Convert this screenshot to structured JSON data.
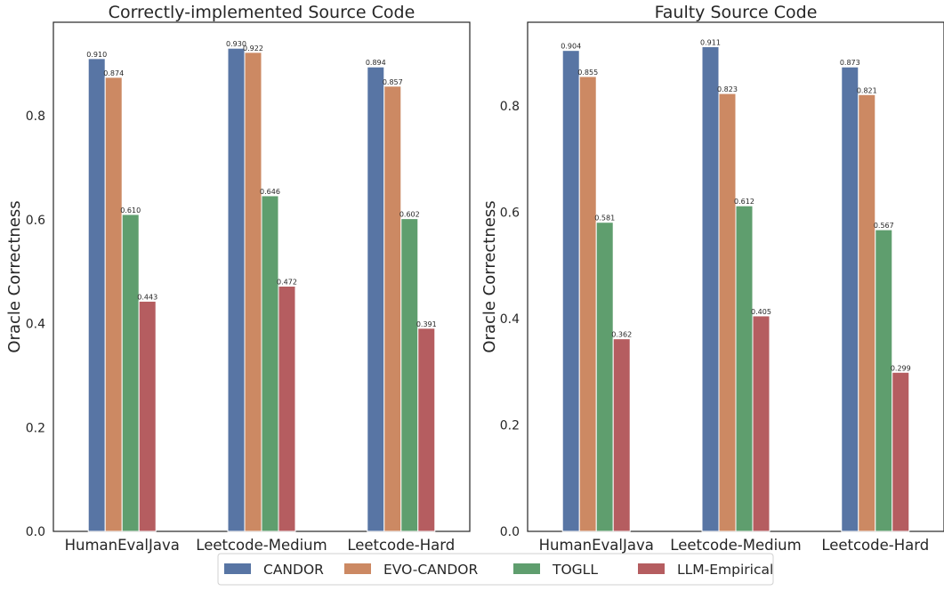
{
  "chart_data": [
    {
      "type": "bar",
      "title": "Correctly-implemented Source Code",
      "ylabel": "Oracle Correctness",
      "xlabel": "",
      "categories": [
        "HumanEvalJava",
        "Leetcode-Medium",
        "Leetcode-Hard"
      ],
      "ylim": [
        0,
        0.98
      ],
      "yticks": [
        "0.0",
        "0.2",
        "0.4",
        "0.6",
        "0.8"
      ],
      "series": [
        {
          "name": "CANDOR",
          "values": [
            0.91,
            0.93,
            0.894
          ],
          "labels": [
            "0.910",
            "0.930",
            "0.894"
          ]
        },
        {
          "name": "EVO-CANDOR",
          "values": [
            0.874,
            0.922,
            0.857
          ],
          "labels": [
            "0.874",
            "0.922",
            "0.857"
          ]
        },
        {
          "name": "TOGLL",
          "values": [
            0.61,
            0.646,
            0.602
          ],
          "labels": [
            "0.610",
            "0.646",
            "0.602"
          ]
        },
        {
          "name": "LLM-Empirical",
          "values": [
            0.443,
            0.472,
            0.391
          ],
          "labels": [
            "0.443",
            "0.472",
            "0.391"
          ]
        }
      ]
    },
    {
      "type": "bar",
      "title": "Faulty Source Code",
      "ylabel": "Oracle Correctness",
      "xlabel": "",
      "categories": [
        "HumanEvalJava",
        "Leetcode-Medium",
        "Leetcode-Hard"
      ],
      "ylim": [
        0,
        0.957
      ],
      "yticks": [
        "0.0",
        "0.2",
        "0.4",
        "0.6",
        "0.8"
      ],
      "series": [
        {
          "name": "CANDOR",
          "values": [
            0.904,
            0.911,
            0.873
          ],
          "labels": [
            "0.904",
            "0.911",
            "0.873"
          ]
        },
        {
          "name": "EVO-CANDOR",
          "values": [
            0.855,
            0.823,
            0.821
          ],
          "labels": [
            "0.855",
            "0.823",
            "0.821"
          ]
        },
        {
          "name": "TOGLL",
          "values": [
            0.581,
            0.612,
            0.567
          ],
          "labels": [
            "0.581",
            "0.612",
            "0.567"
          ]
        },
        {
          "name": "LLM-Empirical",
          "values": [
            0.362,
            0.405,
            0.299
          ],
          "labels": [
            "0.362",
            "0.405",
            "0.299"
          ]
        }
      ]
    }
  ],
  "legend": {
    "placement": "bottom-center",
    "items": [
      {
        "label": "CANDOR",
        "color": "#5875a4"
      },
      {
        "label": "EVO-CANDOR",
        "color": "#cc8963"
      },
      {
        "label": "TOGLL",
        "color": "#5f9e6e"
      },
      {
        "label": "LLM-Empirical",
        "color": "#b55d60"
      }
    ]
  },
  "colors": {
    "CANDOR": "#5875a4",
    "EVO-CANDOR": "#cc8963",
    "TOGLL": "#5f9e6e",
    "LLM-Empirical": "#b55d60",
    "axes": "#262626",
    "background": "#ffffff"
  }
}
